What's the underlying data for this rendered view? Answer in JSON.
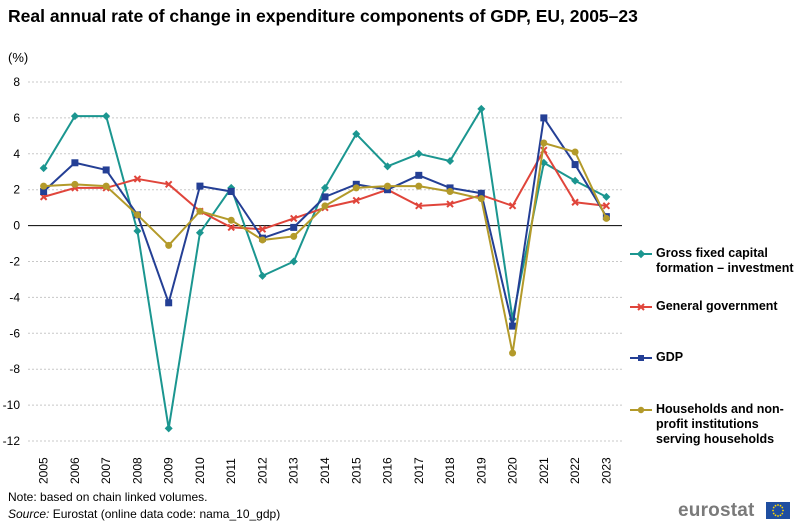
{
  "title": "Real annual rate of change in expenditure components of GDP, EU, 2005–23",
  "unit_label": "(%)",
  "note": "Note: based on chain linked volumes.",
  "source_prefix": "Source:",
  "source_text": " Eurostat (online data code: nama_10_gdp)",
  "logo_text": "eurostat",
  "colors": {
    "gfcf": "#1b9690",
    "government": "#e0453b",
    "gdp": "#243f95",
    "households": "#b39a2a",
    "grid": "#c8c8c8"
  },
  "chart_data": {
    "type": "line",
    "title": "Real annual rate of change in expenditure components of GDP, EU, 2005–23",
    "ylabel": "(%)",
    "xlabel": "",
    "ylim": [
      -12,
      8
    ],
    "yticks": [
      8,
      6,
      4,
      2,
      0,
      -2,
      -4,
      -6,
      -8,
      -10,
      -12
    ],
    "grid": true,
    "legend_position": "right",
    "categories": [
      "2005",
      "2006",
      "2007",
      "2008",
      "2009",
      "2010",
      "2011",
      "2012",
      "2013",
      "2014",
      "2015",
      "2016",
      "2017",
      "2018",
      "2019",
      "2020",
      "2021",
      "2022",
      "2023"
    ],
    "series": [
      {
        "name": "Gross fixed capital formation – investment",
        "color_key": "gfcf",
        "marker": "diamond",
        "values": [
          3.2,
          6.1,
          6.1,
          -0.3,
          -11.3,
          -0.4,
          2.1,
          -2.8,
          -2.0,
          2.1,
          5.1,
          3.3,
          4.0,
          3.6,
          6.5,
          -5.2,
          3.5,
          2.5,
          1.6
        ]
      },
      {
        "name": "General government",
        "color_key": "government",
        "marker": "cross",
        "values": [
          1.6,
          2.1,
          2.1,
          2.6,
          2.3,
          0.8,
          -0.1,
          -0.2,
          0.4,
          1.0,
          1.4,
          2.0,
          1.1,
          1.2,
          1.7,
          1.1,
          4.2,
          1.3,
          1.1
        ]
      },
      {
        "name": "GDP",
        "color_key": "gdp",
        "marker": "square",
        "values": [
          1.9,
          3.5,
          3.1,
          0.6,
          -4.3,
          2.2,
          1.9,
          -0.7,
          -0.1,
          1.6,
          2.3,
          2.0,
          2.8,
          2.1,
          1.8,
          -5.6,
          6.0,
          3.4,
          0.5
        ]
      },
      {
        "name": "Households and non-profit institutions serving households",
        "color_key": "households",
        "marker": "circle",
        "values": [
          2.2,
          2.3,
          2.2,
          0.6,
          -1.1,
          0.8,
          0.3,
          -0.8,
          -0.6,
          1.1,
          2.1,
          2.2,
          2.2,
          1.9,
          1.5,
          -7.1,
          4.6,
          4.1,
          0.4
        ]
      }
    ],
    "legend_labels": [
      "Gross fixed capital formation – investment",
      "General government",
      "GDP",
      "Households and non-profit institutions serving households"
    ]
  }
}
